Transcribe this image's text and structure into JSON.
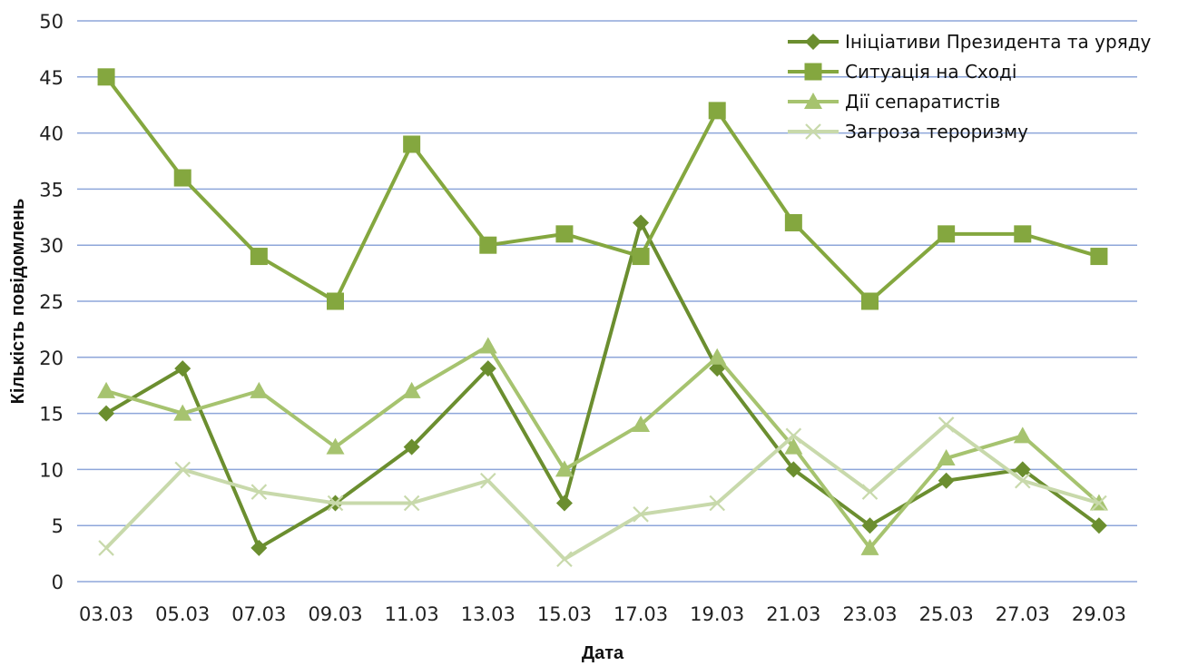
{
  "chart_data": {
    "type": "line",
    "title": "",
    "xlabel": "Дата",
    "ylabel": "Кількість повідомлень",
    "ylim": [
      0,
      50
    ],
    "yticks": [
      "0",
      "5",
      "10",
      "15",
      "20",
      "25",
      "30",
      "35",
      "40",
      "45",
      "50"
    ],
    "categories": [
      "03.03",
      "05.03",
      "07.03",
      "09.03",
      "11.03",
      "13.03",
      "15.03",
      "17.03",
      "19.03",
      "21.03",
      "23.03",
      "25.03",
      "27.03",
      "29.03"
    ],
    "grid": "horizontal",
    "legend_position": "top-right",
    "series": [
      {
        "name": "Ініціативи Президента та уряду",
        "marker": "diamond",
        "color": "#6b8e2f",
        "values": [
          15,
          19,
          3,
          7,
          12,
          19,
          7,
          32,
          19,
          10,
          5,
          9,
          10,
          5
        ]
      },
      {
        "name": "Ситуація на Сході",
        "marker": "square",
        "color": "#84a73f",
        "values": [
          45,
          36,
          29,
          25,
          39,
          30,
          31,
          29,
          42,
          32,
          25,
          31,
          31,
          29
        ]
      },
      {
        "name": "Дії сепаратистів",
        "marker": "triangle",
        "color": "#a6c36f",
        "values": [
          17,
          15,
          17,
          12,
          17,
          21,
          10,
          14,
          20,
          12,
          3,
          11,
          13,
          7
        ]
      },
      {
        "name": "Загроза тероризму",
        "marker": "x",
        "color": "#c8d9ab",
        "values": [
          3,
          10,
          8,
          7,
          7,
          9,
          2,
          6,
          7,
          13,
          8,
          14,
          9,
          7
        ]
      }
    ]
  }
}
